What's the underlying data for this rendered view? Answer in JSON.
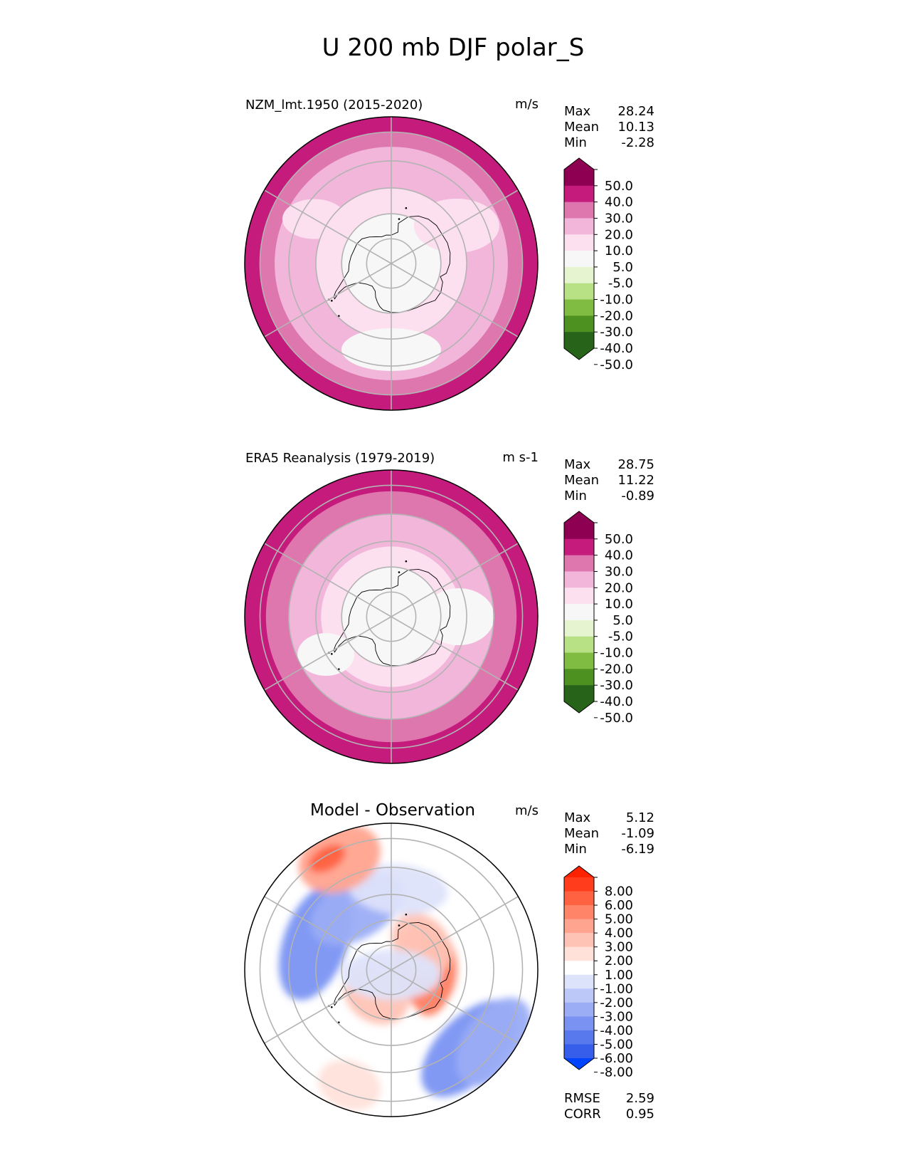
{
  "figure": {
    "title": "U 200 mb DJF polar_S"
  },
  "stat_labels": {
    "max": "Max",
    "mean": "Mean",
    "min": "Min",
    "rmse": "RMSE",
    "corr": "CORR"
  },
  "chart_data": [
    {
      "type": "heatmap",
      "projection": "south-polar-stereographic",
      "title": "NZM_lmt.1950 (2015-2020)",
      "units": "m/s",
      "stats": {
        "max": "28.24",
        "mean": "10.13",
        "min": "-2.28"
      },
      "colorbar": {
        "extend": "both",
        "tick_labels": [
          "50.0",
          "40.0",
          "30.0",
          "20.0",
          "10.0",
          "5.0",
          "-5.0",
          "-10.0",
          "-20.0",
          "-30.0",
          "-40.0",
          "-50.0"
        ],
        "colors_top_to_bottom": [
          "#8e0152",
          "#c51b7d",
          "#de77ae",
          "#f1b6da",
          "#fde0ef",
          "#f7f7f7",
          "#e6f5d0",
          "#b8e186",
          "#7fbc41",
          "#4d9221",
          "#276419"
        ],
        "extend_colors": {
          "top": "#8e0152",
          "bottom": "#276419"
        }
      },
      "zonal_bands": [
        {
          "lat": -90,
          "value": 0
        },
        {
          "lat": -70,
          "value": 0
        },
        {
          "lat": -60,
          "value": 5
        },
        {
          "lat": -55,
          "value": 10
        },
        {
          "lat": -45,
          "value": 10
        },
        {
          "lat": -40,
          "value": 20
        }
      ]
    },
    {
      "type": "heatmap",
      "projection": "south-polar-stereographic",
      "title": "ERA5 Reanalysis (1979-2019)",
      "units": "m s-1",
      "stats": {
        "max": "28.75",
        "mean": "11.22",
        "min": "-0.89"
      },
      "colorbar": {
        "extend": "both",
        "tick_labels": [
          "50.0",
          "40.0",
          "30.0",
          "20.0",
          "10.0",
          "5.0",
          "-5.0",
          "-10.0",
          "-20.0",
          "-30.0",
          "-40.0",
          "-50.0"
        ],
        "colors_top_to_bottom": [
          "#8e0152",
          "#c51b7d",
          "#de77ae",
          "#f1b6da",
          "#fde0ef",
          "#f7f7f7",
          "#e6f5d0",
          "#b8e186",
          "#7fbc41",
          "#4d9221",
          "#276419"
        ],
        "extend_colors": {
          "top": "#8e0152",
          "bottom": "#276419"
        }
      },
      "zonal_bands": [
        {
          "lat": -90,
          "value": 0
        },
        {
          "lat": -70,
          "value": 0
        },
        {
          "lat": -62,
          "value": 5
        },
        {
          "lat": -50,
          "value": 10
        },
        {
          "lat": -42,
          "value": 20
        }
      ]
    },
    {
      "type": "heatmap",
      "projection": "south-polar-stereographic",
      "title": "Model - Observation",
      "units": "m/s",
      "stats": {
        "max": "5.12",
        "mean": "-1.09",
        "min": "-6.19",
        "rmse": "2.59",
        "corr": "0.95"
      },
      "colorbar": {
        "extend": "both",
        "tick_labels": [
          "8.00",
          "6.00",
          "5.00",
          "4.00",
          "3.00",
          "2.00",
          "1.00",
          "-1.00",
          "-2.00",
          "-3.00",
          "-4.00",
          "-5.00",
          "-6.00",
          "-8.00"
        ],
        "colors_top_to_bottom": [
          "#ff3d1c",
          "#ff6241",
          "#ff8468",
          "#ffa48f",
          "#ffc3b5",
          "#ffe1da",
          "#ffffff",
          "#dde3fb",
          "#bcc8f8",
          "#9badf5",
          "#7a93f2",
          "#5878ee",
          "#375eeb"
        ],
        "extend_colors": {
          "top": "#ff2200",
          "bottom": "#0044ff"
        }
      },
      "anomaly_features": [
        {
          "name": "east-antarctic-positive",
          "lon": 95,
          "lat": -76,
          "value": 3
        },
        {
          "name": "east-antarctic-core",
          "lon": 80,
          "lat": -73,
          "value": 4
        },
        {
          "name": "east-coast-positive",
          "lon": 130,
          "lat": -74,
          "value": 2
        },
        {
          "name": "west-antarctic-positive",
          "lon": -30,
          "lat": -78,
          "value": 2
        },
        {
          "name": "pole-negative",
          "lon": 0,
          "lat": -88,
          "value": -2
        },
        {
          "name": "pacific-negative-jet",
          "lon": -110,
          "lat": -58,
          "value": -5
        },
        {
          "name": "ross-sea-negative",
          "lon": -150,
          "lat": -62,
          "value": -4
        },
        {
          "name": "south-pacific-negative",
          "lon": 175,
          "lat": -58,
          "value": -2
        },
        {
          "name": "indian-ocean-negative",
          "lon": 45,
          "lat": -47,
          "value": -5
        },
        {
          "name": "indian-ocean-negative-outer",
          "lon": 55,
          "lat": -42,
          "value": -4
        },
        {
          "name": "atlantic-positive",
          "lon": -20,
          "lat": -43,
          "value": 1
        },
        {
          "name": "pacific-positive",
          "lon": -155,
          "lat": -43,
          "value": 3
        },
        {
          "name": "pacific-positive-core",
          "lon": -150,
          "lat": -41,
          "value": 5
        }
      ]
    }
  ]
}
